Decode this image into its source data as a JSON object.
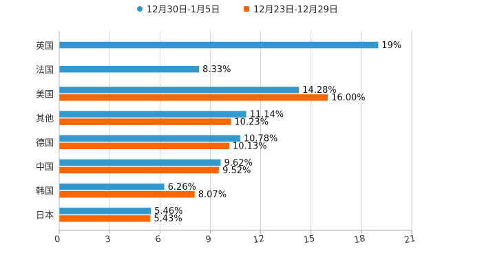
{
  "chart_data": {
    "type": "bar",
    "orientation": "horizontal",
    "categories": [
      "英国",
      "法国",
      "美国",
      "其他",
      "德国",
      "中国",
      "韩国",
      "日本"
    ],
    "series": [
      {
        "name": "12月30日-1月5日",
        "color": "#3399cc",
        "values": [
          19,
          8.33,
          14.28,
          11.14,
          10.78,
          9.62,
          6.26,
          5.46
        ],
        "labels": [
          "19%",
          "8.33%",
          "14.28%",
          "11.14%",
          "10.78%",
          "9.62%",
          "6.26%",
          "5.46%"
        ]
      },
      {
        "name": "12月23日-12月29日",
        "color": "#ff6600",
        "values": [
          null,
          null,
          16.0,
          10.23,
          10.13,
          9.52,
          8.07,
          5.43
        ],
        "labels": [
          "",
          "",
          "16.00%",
          "10.23%",
          "10.13%",
          "9.52%",
          "8.07%",
          "5.43%"
        ]
      }
    ],
    "xlim": [
      0,
      21
    ],
    "xticks": [
      0,
      3,
      6,
      9,
      12,
      15,
      18,
      21
    ],
    "xtick_labels": [
      "0",
      "3",
      "6",
      "9",
      "12",
      "15",
      "18",
      "21"
    ],
    "grid": true,
    "legend_position": "top-center",
    "title": "",
    "xlabel": "",
    "ylabel": ""
  }
}
